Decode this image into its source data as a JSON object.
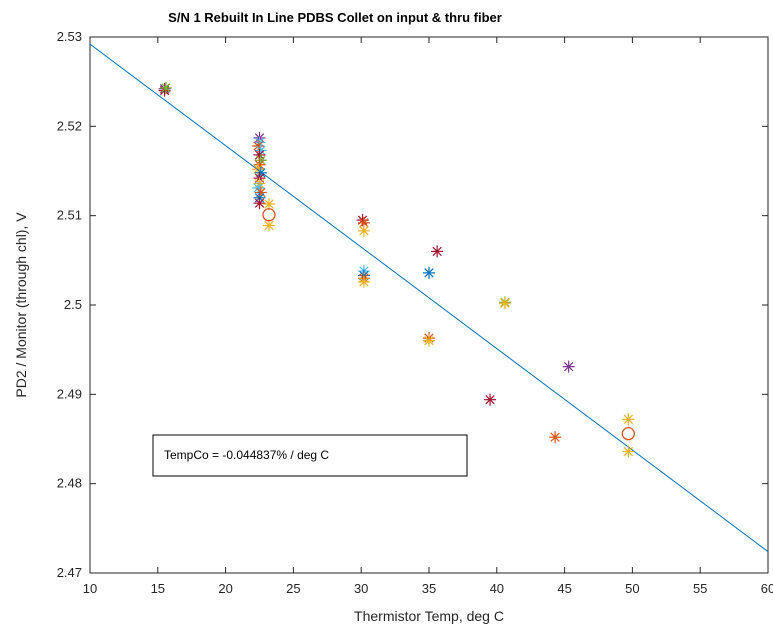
{
  "chart_data": {
    "type": "scatter",
    "title": "S/N 1 Rebuilt In Line PDBS Collet on input & thru fiber",
    "xlabel": "Thermistor Temp, deg C",
    "ylabel": "PD2 / Monitor (through chl), V",
    "xlim": [
      10,
      60
    ],
    "ylim": [
      2.47,
      2.53
    ],
    "xticks": [
      10,
      15,
      20,
      25,
      30,
      35,
      40,
      45,
      50,
      55,
      60
    ],
    "yticks": [
      2.47,
      2.48,
      2.49,
      2.5,
      2.51,
      2.52,
      2.53
    ],
    "xtick_labels": [
      "10",
      "15",
      "20",
      "25",
      "30",
      "35",
      "40",
      "45",
      "50",
      "55",
      "60"
    ],
    "ytick_labels": [
      "2.47",
      "2.48",
      "2.49",
      "2.5",
      "2.51",
      "2.52",
      "2.53"
    ],
    "grid": false,
    "annotation": {
      "text": "TempCo = -0.044837% / deg C",
      "x": 15,
      "y": 2.4835
    },
    "fit_line": {
      "x": [
        10,
        60
      ],
      "y": [
        2.5292,
        2.4724
      ],
      "color": "#0072BD"
    },
    "mean_circles": [
      {
        "x": 23.2,
        "y": 2.5101,
        "color": "#D95319"
      },
      {
        "x": 49.7,
        "y": 2.4856,
        "color": "#D95319"
      }
    ],
    "points": [
      {
        "x": 15.5,
        "y": 2.5242,
        "color": "#7E2F8E"
      },
      {
        "x": 15.5,
        "y": 2.524,
        "color": "#A2142F"
      },
      {
        "x": 15.6,
        "y": 2.5243,
        "color": "#77AC30"
      },
      {
        "x": 22.5,
        "y": 2.5187,
        "color": "#7E2F8E"
      },
      {
        "x": 22.5,
        "y": 2.5182,
        "color": "#4DBEEE"
      },
      {
        "x": 22.4,
        "y": 2.5178,
        "color": "#D95319"
      },
      {
        "x": 22.6,
        "y": 2.5173,
        "color": "#4DBEEE"
      },
      {
        "x": 22.5,
        "y": 2.5168,
        "color": "#A2142F"
      },
      {
        "x": 22.6,
        "y": 2.5162,
        "color": "#77AC30"
      },
      {
        "x": 22.5,
        "y": 2.5157,
        "color": "#D95319"
      },
      {
        "x": 22.4,
        "y": 2.5152,
        "color": "#EDB120"
      },
      {
        "x": 22.6,
        "y": 2.5148,
        "color": "#0072BD"
      },
      {
        "x": 22.5,
        "y": 2.5142,
        "color": "#A2142F"
      },
      {
        "x": 22.5,
        "y": 2.5136,
        "color": "#EDB120"
      },
      {
        "x": 22.4,
        "y": 2.5131,
        "color": "#4DBEEE"
      },
      {
        "x": 22.6,
        "y": 2.5126,
        "color": "#D95319"
      },
      {
        "x": 22.5,
        "y": 2.512,
        "color": "#0072BD"
      },
      {
        "x": 22.5,
        "y": 2.5114,
        "color": "#A2142F"
      },
      {
        "x": 23.2,
        "y": 2.5113,
        "color": "#EDB120"
      },
      {
        "x": 23.2,
        "y": 2.5089,
        "color": "#EDB120"
      },
      {
        "x": 30.1,
        "y": 2.5095,
        "color": "#A2142F"
      },
      {
        "x": 30.2,
        "y": 2.5092,
        "color": "#D95319"
      },
      {
        "x": 30.2,
        "y": 2.5083,
        "color": "#EDB120"
      },
      {
        "x": 30.2,
        "y": 2.5038,
        "color": "#4DBEEE"
      },
      {
        "x": 30.2,
        "y": 2.5033,
        "color": "#0072BD"
      },
      {
        "x": 30.2,
        "y": 2.503,
        "color": "#D95319"
      },
      {
        "x": 30.2,
        "y": 2.5026,
        "color": "#EDB120"
      },
      {
        "x": 35.0,
        "y": 2.5036,
        "color": "#0072BD"
      },
      {
        "x": 35.0,
        "y": 2.4963,
        "color": "#D95319"
      },
      {
        "x": 35.0,
        "y": 2.496,
        "color": "#EDB120"
      },
      {
        "x": 35.6,
        "y": 2.506,
        "color": "#A2142F"
      },
      {
        "x": 39.5,
        "y": 2.4894,
        "color": "#A2142F"
      },
      {
        "x": 40.6,
        "y": 2.5003,
        "color": "#77AC30"
      },
      {
        "x": 40.6,
        "y": 2.5002,
        "color": "#EDB120"
      },
      {
        "x": 44.3,
        "y": 2.4852,
        "color": "#D95319"
      },
      {
        "x": 45.3,
        "y": 2.4931,
        "color": "#7E2F8E"
      },
      {
        "x": 49.7,
        "y": 2.4872,
        "color": "#EDB120"
      },
      {
        "x": 49.7,
        "y": 2.4836,
        "color": "#EDB120"
      }
    ]
  }
}
